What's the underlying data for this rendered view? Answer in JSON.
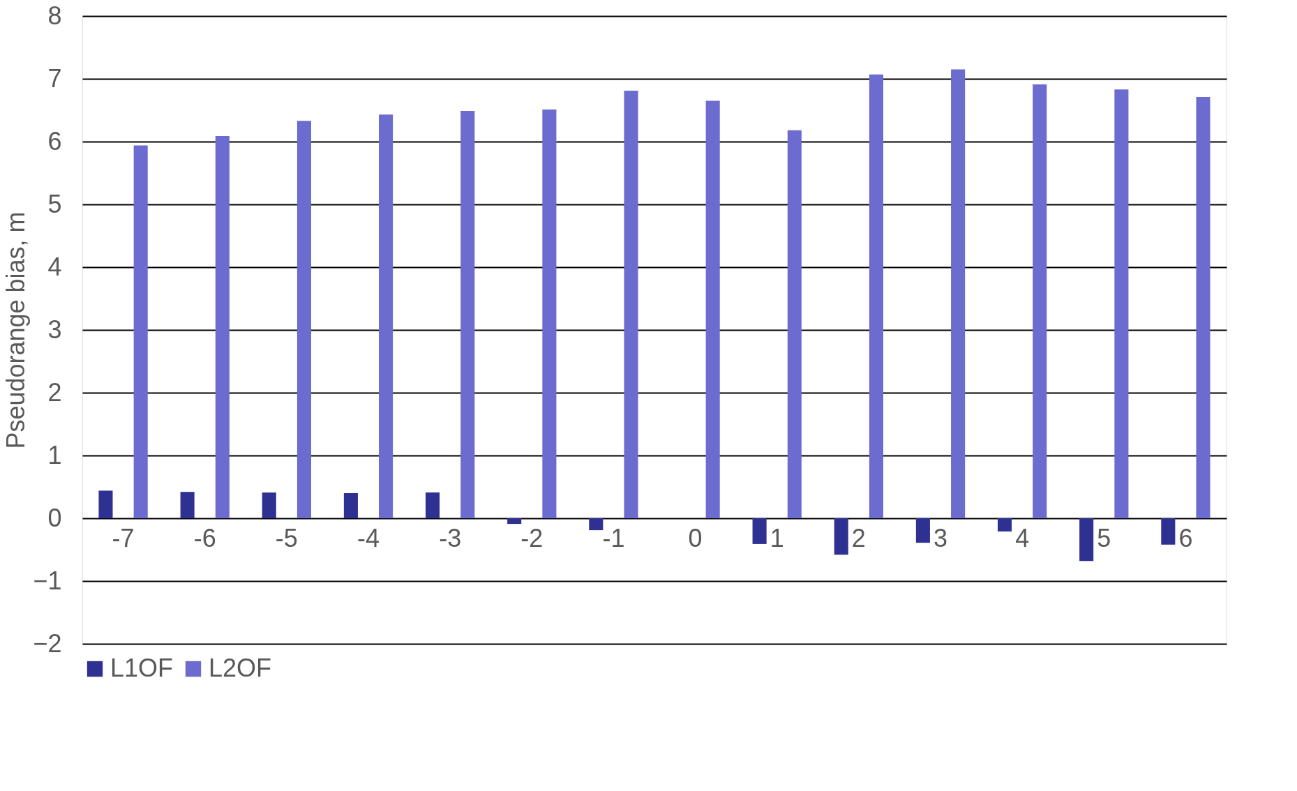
{
  "chart_data": {
    "type": "bar",
    "ylabel": "Pseudorange bias, m",
    "categories": [
      "-7",
      "-6",
      "-5",
      "-4",
      "-3",
      "-2",
      "-1",
      "0",
      "1",
      "2",
      "3",
      "4",
      "5",
      "6"
    ],
    "series": [
      {
        "name": "L1OF",
        "color": "#2e3192",
        "values": [
          0.44,
          0.42,
          0.41,
          0.4,
          0.41,
          -0.09,
          -0.19,
          0,
          -0.41,
          -0.58,
          -0.39,
          -0.21,
          -0.68,
          -0.42
        ]
      },
      {
        "name": "L2OF",
        "color": "#6b6bd0",
        "values": [
          5.94,
          6.09,
          6.33,
          6.43,
          6.49,
          6.51,
          6.81,
          6.65,
          6.18,
          7.07,
          7.15,
          6.91,
          6.83,
          6.71
        ]
      }
    ],
    "ylim": [
      -2,
      8
    ],
    "yticks": [
      -2,
      -1,
      0,
      1,
      2,
      3,
      4,
      5,
      6,
      7,
      8
    ],
    "grid": "y",
    "legend": "bottom"
  }
}
